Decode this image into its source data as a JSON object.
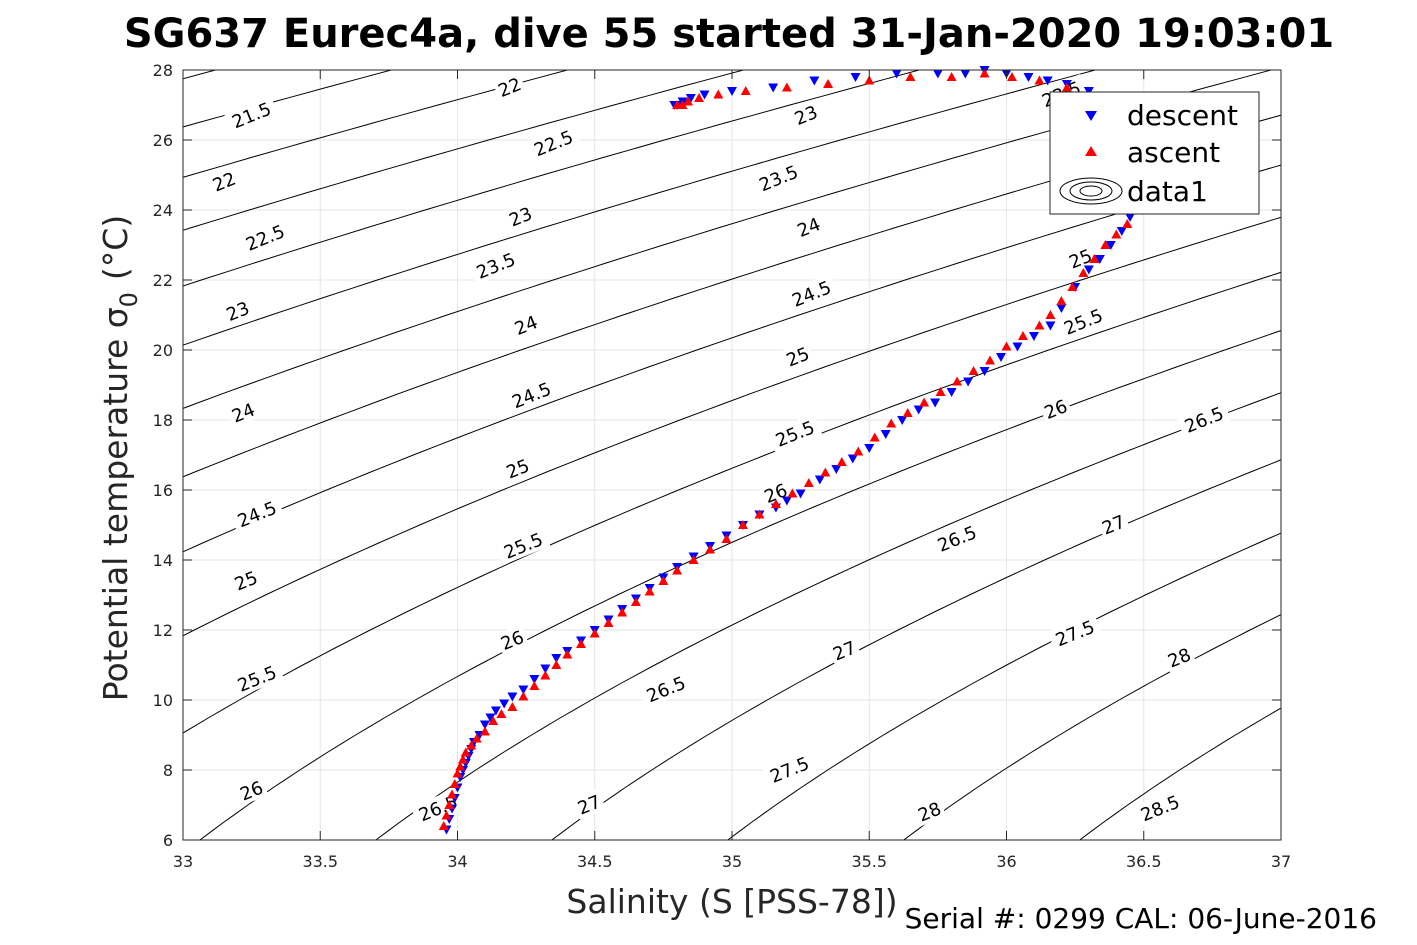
{
  "chart_data": {
    "type": "scatter",
    "title": "SG637 Eurec4a, dive 55 started 31-Jan-2020 19:03:01",
    "xlabel": "Salinity (S [PSS-78])",
    "ylabel_main": "Potential temperature σ",
    "ylabel_sub": "0",
    "ylabel_unit": "(°C)",
    "xlim": [
      33,
      37
    ],
    "ylim": [
      6,
      28
    ],
    "grid": true,
    "legend_position": "top-right",
    "xticks": [
      33,
      33.5,
      34,
      34.5,
      35,
      35.5,
      36,
      36.5,
      37
    ],
    "xtick_labels": [
      "33",
      "33.5",
      "34",
      "34.5",
      "35",
      "35.5",
      "36",
      "36.5",
      "37"
    ],
    "yticks": [
      6,
      8,
      10,
      12,
      14,
      16,
      18,
      20,
      22,
      24,
      26,
      28
    ],
    "ytick_labels": [
      "6",
      "8",
      "10",
      "12",
      "14",
      "16",
      "18",
      "20",
      "22",
      "24",
      "26",
      "28"
    ],
    "density_contours": [
      21.5,
      22,
      22.5,
      23,
      23.5,
      24,
      24.5,
      25,
      25.5,
      26,
      26.5,
      27,
      27.5,
      28,
      28.5
    ],
    "contour_labels": [
      {
        "text": "21.5",
        "x": 33.25,
        "y": 26.7
      },
      {
        "text": "22",
        "x": 33.15,
        "y": 24.8
      },
      {
        "text": "22.5",
        "x": 33.3,
        "y": 23.2
      },
      {
        "text": "23",
        "x": 33.2,
        "y": 21.1
      },
      {
        "text": "24",
        "x": 33.22,
        "y": 18.2
      },
      {
        "text": "24.5",
        "x": 33.27,
        "y": 15.3
      },
      {
        "text": "25",
        "x": 33.23,
        "y": 13.4
      },
      {
        "text": "25.5",
        "x": 33.27,
        "y": 10.6
      },
      {
        "text": "26",
        "x": 33.25,
        "y": 7.4
      },
      {
        "text": "22",
        "x": 34.19,
        "y": 27.5
      },
      {
        "text": "22.5",
        "x": 34.35,
        "y": 25.9
      },
      {
        "text": "23",
        "x": 34.23,
        "y": 23.8
      },
      {
        "text": "23.5",
        "x": 34.14,
        "y": 22.4
      },
      {
        "text": "24",
        "x": 34.25,
        "y": 20.7
      },
      {
        "text": "24.5",
        "x": 34.27,
        "y": 18.7
      },
      {
        "text": "25",
        "x": 34.22,
        "y": 16.6
      },
      {
        "text": "25.5",
        "x": 34.24,
        "y": 14.4
      },
      {
        "text": "26",
        "x": 34.2,
        "y": 11.7
      },
      {
        "text": "26.5",
        "x": 33.93,
        "y": 6.9
      },
      {
        "text": "26.5",
        "x": 34.76,
        "y": 10.3
      },
      {
        "text": "27",
        "x": 34.48,
        "y": 7.0
      },
      {
        "text": "23",
        "x": 35.27,
        "y": 26.7
      },
      {
        "text": "23.5",
        "x": 35.17,
        "y": 24.9
      },
      {
        "text": "24",
        "x": 35.28,
        "y": 23.5
      },
      {
        "text": "24.5",
        "x": 35.29,
        "y": 21.6
      },
      {
        "text": "25",
        "x": 35.24,
        "y": 19.8
      },
      {
        "text": "25.5",
        "x": 35.23,
        "y": 17.6
      },
      {
        "text": "26",
        "x": 35.16,
        "y": 15.9
      },
      {
        "text": "26.5",
        "x": 35.82,
        "y": 14.6
      },
      {
        "text": "27",
        "x": 35.41,
        "y": 11.4
      },
      {
        "text": "27.5",
        "x": 35.21,
        "y": 8.0
      },
      {
        "text": "28",
        "x": 35.72,
        "y": 6.8
      },
      {
        "text": "23.5",
        "x": 36.2,
        "y": 27.3
      },
      {
        "text": "25",
        "x": 36.27,
        "y": 22.6
      },
      {
        "text": "25.5",
        "x": 36.28,
        "y": 20.8
      },
      {
        "text": "26",
        "x": 36.18,
        "y": 18.3
      },
      {
        "text": "26.5",
        "x": 36.72,
        "y": 18.0
      },
      {
        "text": "27",
        "x": 36.39,
        "y": 15.0
      },
      {
        "text": "27.5",
        "x": 36.25,
        "y": 11.9
      },
      {
        "text": "28",
        "x": 36.63,
        "y": 11.2
      },
      {
        "text": "28.5",
        "x": 36.56,
        "y": 6.9
      }
    ],
    "series": [
      {
        "name": "descent",
        "marker": "down-triangle",
        "color": "#0000ff",
        "x": [
          33.96,
          33.97,
          33.98,
          33.99,
          34.0,
          34.01,
          34.02,
          34.03,
          34.04,
          34.05,
          34.06,
          34.08,
          34.1,
          34.12,
          34.14,
          34.17,
          34.2,
          34.24,
          34.28,
          34.32,
          34.36,
          34.4,
          34.45,
          34.5,
          34.55,
          34.6,
          34.65,
          34.7,
          34.75,
          34.8,
          34.86,
          34.92,
          34.98,
          35.04,
          35.1,
          35.16,
          35.2,
          35.25,
          35.32,
          35.38,
          35.44,
          35.5,
          35.56,
          35.62,
          35.68,
          35.74,
          35.8,
          35.86,
          35.92,
          35.98,
          36.04,
          36.1,
          36.16,
          36.2,
          36.25,
          36.3,
          36.34,
          36.38,
          36.42,
          36.45,
          36.47,
          36.49,
          36.5,
          36.45,
          36.38,
          36.3,
          36.22,
          36.15,
          36.08,
          36.0,
          35.92,
          35.85,
          35.75,
          35.6,
          35.45,
          35.3,
          35.15,
          35.0,
          34.9,
          34.85,
          34.82,
          34.8,
          34.79
        ],
        "y": [
          6.3,
          6.6,
          6.9,
          7.2,
          7.5,
          7.8,
          8.0,
          8.2,
          8.4,
          8.6,
          8.8,
          9.0,
          9.3,
          9.5,
          9.7,
          9.9,
          10.1,
          10.3,
          10.6,
          10.9,
          11.2,
          11.4,
          11.7,
          12.0,
          12.3,
          12.6,
          12.9,
          13.2,
          13.5,
          13.8,
          14.1,
          14.4,
          14.7,
          15.0,
          15.3,
          15.5,
          15.7,
          15.9,
          16.3,
          16.6,
          16.9,
          17.2,
          17.6,
          18.0,
          18.3,
          18.5,
          18.8,
          19.1,
          19.4,
          19.8,
          20.1,
          20.4,
          20.7,
          21.2,
          21.8,
          22.3,
          22.6,
          23.0,
          23.4,
          23.8,
          24.3,
          24.7,
          25.2,
          26.5,
          27.0,
          27.4,
          27.6,
          27.7,
          27.8,
          27.9,
          28.0,
          27.9,
          27.9,
          27.9,
          27.8,
          27.7,
          27.5,
          27.4,
          27.3,
          27.2,
          27.1,
          27.0,
          27.0
        ]
      },
      {
        "name": "ascent",
        "marker": "up-triangle",
        "color": "#ff0000",
        "x": [
          33.95,
          33.96,
          33.97,
          33.98,
          33.99,
          34.0,
          34.01,
          34.02,
          34.03,
          34.05,
          34.07,
          34.1,
          34.13,
          34.16,
          34.2,
          34.24,
          34.28,
          34.32,
          34.36,
          34.4,
          34.45,
          34.5,
          34.55,
          34.6,
          34.65,
          34.7,
          34.75,
          34.8,
          34.86,
          34.92,
          34.98,
          35.04,
          35.1,
          35.16,
          35.22,
          35.28,
          35.34,
          35.4,
          35.46,
          35.52,
          35.58,
          35.64,
          35.7,
          35.76,
          35.82,
          35.88,
          35.94,
          36.0,
          36.06,
          36.12,
          36.16,
          36.2,
          36.24,
          36.28,
          36.32,
          36.36,
          36.4,
          36.44,
          36.47,
          36.49,
          36.5,
          36.42,
          36.32,
          36.22,
          36.12,
          36.02,
          35.92,
          35.8,
          35.65,
          35.5,
          35.35,
          35.2,
          35.05,
          34.95,
          34.88,
          34.84,
          34.82,
          34.8
        ],
        "y": [
          6.4,
          6.7,
          7.0,
          7.3,
          7.6,
          7.9,
          8.1,
          8.3,
          8.5,
          8.7,
          8.9,
          9.1,
          9.4,
          9.6,
          9.8,
          10.1,
          10.4,
          10.7,
          11.0,
          11.3,
          11.6,
          11.9,
          12.2,
          12.5,
          12.8,
          13.1,
          13.4,
          13.7,
          14.0,
          14.3,
          14.6,
          15.0,
          15.3,
          15.6,
          15.9,
          16.2,
          16.5,
          16.8,
          17.1,
          17.5,
          17.9,
          18.2,
          18.5,
          18.8,
          19.1,
          19.4,
          19.7,
          20.1,
          20.4,
          20.7,
          21.0,
          21.4,
          21.8,
          22.2,
          22.6,
          23.0,
          23.3,
          23.6,
          24.0,
          24.4,
          24.9,
          26.6,
          27.1,
          27.5,
          27.7,
          27.8,
          27.9,
          27.8,
          27.8,
          27.7,
          27.6,
          27.5,
          27.4,
          27.3,
          27.2,
          27.1,
          27.0,
          27.0
        ]
      }
    ],
    "legend": [
      "descent",
      "ascent",
      "data1"
    ]
  },
  "footer": {
    "serial": "Serial #: 0299 CAL: 06-June-2016"
  },
  "colors": {
    "descent": "#0000ff",
    "ascent": "#ff0000",
    "contour": "#000000",
    "grid": "#e6e6e6",
    "axis": "#262626"
  }
}
